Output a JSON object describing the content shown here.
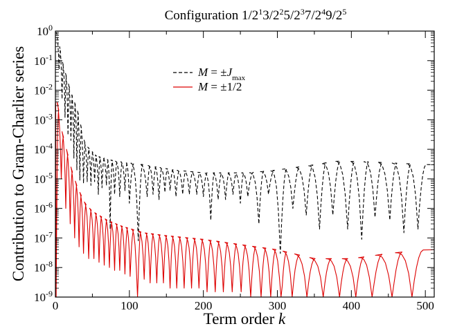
{
  "chart_data": {
    "type": "line",
    "title": {
      "prefix": "Configuration ",
      "segments": [
        {
          "base": "1/2",
          "sup": "1"
        },
        {
          "base": "3/2",
          "sup": "2"
        },
        {
          "base": "5/2",
          "sup": "3"
        },
        {
          "base": "7/2",
          "sup": "4"
        },
        {
          "base": "9/2",
          "sup": "5"
        }
      ]
    },
    "xlabel": {
      "text": "Term order ",
      "var": "k"
    },
    "ylabel": "Contribution to Gram-Charlier series",
    "xlim": [
      0,
      512
    ],
    "ylim": [
      1e-09,
      1
    ],
    "yscale": "log",
    "x_ticks": [
      0,
      100,
      200,
      300,
      400,
      500
    ],
    "y_ticks": [
      {
        "base": "10",
        "exp": "0"
      },
      {
        "base": "10",
        "exp": "-1"
      },
      {
        "base": "10",
        "exp": "-2"
      },
      {
        "base": "10",
        "exp": "-3"
      },
      {
        "base": "10",
        "exp": "-4"
      },
      {
        "base": "10",
        "exp": "-5"
      },
      {
        "base": "10",
        "exp": "-6"
      },
      {
        "base": "10",
        "exp": "-7"
      },
      {
        "base": "10",
        "exp": "-8"
      },
      {
        "base": "10",
        "exp": "-9"
      }
    ],
    "legend_position": "upper-center",
    "series": [
      {
        "key": "m_jmax",
        "legend": {
          "lhs": "M",
          "rel": " = ±",
          "var": "J",
          "sub": "max"
        },
        "color": "#000000",
        "style": "dashed",
        "envelope": [
          [
            2,
            0.9
          ],
          [
            10,
            0.08
          ],
          [
            20,
            0.01
          ],
          [
            30,
            0.002
          ],
          [
            40,
            0.00015
          ],
          [
            55,
            6e-05
          ],
          [
            80,
            4e-05
          ],
          [
            120,
            3e-05
          ],
          [
            160,
            2e-05
          ],
          [
            200,
            1.6e-05
          ],
          [
            260,
            1.6e-05
          ],
          [
            300,
            2e-05
          ],
          [
            350,
            3e-05
          ],
          [
            380,
            4e-05
          ],
          [
            420,
            3.8e-05
          ],
          [
            460,
            3.4e-05
          ],
          [
            510,
            3e-05
          ]
        ],
        "minima": [
          [
            5,
            0.05
          ],
          [
            9,
            0.005
          ],
          [
            13,
            0.0012
          ],
          [
            17,
            0.0003
          ],
          [
            21,
            0.0002
          ],
          [
            25,
            5e-05
          ],
          [
            29,
            2e-05
          ],
          [
            33,
            9e-06
          ],
          [
            38,
            7e-06
          ],
          [
            43,
            8e-06
          ],
          [
            48,
            6e-06
          ],
          [
            53,
            8e-06
          ],
          [
            58,
            3e-06
          ],
          [
            63,
            5e-06
          ],
          [
            69,
            6e-06
          ],
          [
            74,
            2e-07
          ],
          [
            80,
            3e-06
          ],
          [
            87,
            2.5e-06
          ],
          [
            94,
            4e-06
          ],
          [
            100,
            1.5e-06
          ],
          [
            112,
            8e-08
          ],
          [
            124,
            2.5e-06
          ],
          [
            132,
            3e-06
          ],
          [
            140,
            2e-06
          ],
          [
            148,
            3.5e-06
          ],
          [
            155,
            4e-06
          ],
          [
            163,
            2.5e-06
          ],
          [
            172,
            3e-06
          ],
          [
            181,
            3e-06
          ],
          [
            191,
            3e-06
          ],
          [
            200,
            2.5e-06
          ],
          [
            210,
            4e-07
          ],
          [
            220,
            2e-06
          ],
          [
            230,
            2e-06
          ],
          [
            240,
            3e-06
          ],
          [
            250,
            1.5e-06
          ],
          [
            260,
            2.5e-06
          ],
          [
            275,
            3e-07
          ],
          [
            288,
            3e-06
          ],
          [
            304,
            3e-08
          ],
          [
            321,
            1e-06
          ],
          [
            339,
            6e-07
          ],
          [
            357,
            2e-07
          ],
          [
            375,
            6e-07
          ],
          [
            395,
            2e-07
          ],
          [
            414,
            9e-08
          ],
          [
            432,
            5e-07
          ],
          [
            452,
            4e-07
          ],
          [
            471,
            1.5e-07
          ],
          [
            490,
            2e-07
          ]
        ]
      },
      {
        "key": "m_half",
        "legend": {
          "lhs": "M",
          "rel": " = ±1/2",
          "var": "",
          "sub": ""
        },
        "color": "#dd0000",
        "style": "solid",
        "envelope": [
          [
            3,
            0.004
          ],
          [
            8,
            0.0005
          ],
          [
            15,
            0.0001
          ],
          [
            22,
            2e-05
          ],
          [
            30,
            5e-06
          ],
          [
            40,
            1.5e-06
          ],
          [
            50,
            8e-07
          ],
          [
            70,
            4e-07
          ],
          [
            90,
            2.5e-07
          ],
          [
            120,
            1.5e-07
          ],
          [
            150,
            1.2e-07
          ],
          [
            200,
            9e-08
          ],
          [
            250,
            6e-08
          ],
          [
            300,
            4e-08
          ],
          [
            350,
            2e-08
          ],
          [
            400,
            2e-08
          ],
          [
            450,
            3e-08
          ],
          [
            500,
            4e-08
          ]
        ],
        "minima": [
          [
            1,
            1e-09
          ],
          [
            8,
            1e-05
          ],
          [
            14,
            1e-06
          ],
          [
            20,
            3e-07
          ],
          [
            26,
            1e-07
          ],
          [
            32,
            5e-08
          ],
          [
            38,
            3e-08
          ],
          [
            45,
            2e-08
          ],
          [
            52,
            2e-08
          ],
          [
            59,
            1.5e-08
          ],
          [
            66,
            1.2e-08
          ],
          [
            73,
            1e-08
          ],
          [
            80,
            8e-09
          ],
          [
            87,
            8e-09
          ],
          [
            94,
            6e-09
          ],
          [
            101,
            5e-09
          ],
          [
            111,
            5e-10
          ],
          [
            120,
            4e-09
          ],
          [
            128,
            3e-09
          ],
          [
            137,
            3e-09
          ],
          [
            146,
            3e-09
          ],
          [
            155,
            2e-09
          ],
          [
            164,
            2e-09
          ],
          [
            174,
            2e-09
          ],
          [
            184,
            2e-09
          ],
          [
            194,
            2e-09
          ],
          [
            205,
            1.5e-09
          ],
          [
            216,
            1.5e-09
          ],
          [
            227,
            1.5e-09
          ],
          [
            239,
            1.5e-09
          ],
          [
            251,
            1.5e-09
          ],
          [
            264,
            1e-09
          ],
          [
            278,
            1e-09
          ],
          [
            291,
            1e-09
          ],
          [
            305,
            5e-10
          ],
          [
            320,
            1e-09
          ],
          [
            340,
            1e-09
          ],
          [
            362,
            1e-09
          ],
          [
            384,
            1e-09
          ],
          [
            406,
            1e-09
          ],
          [
            428,
            8e-10
          ],
          [
            455,
            8e-10
          ],
          [
            482,
            1e-09
          ]
        ]
      }
    ]
  }
}
